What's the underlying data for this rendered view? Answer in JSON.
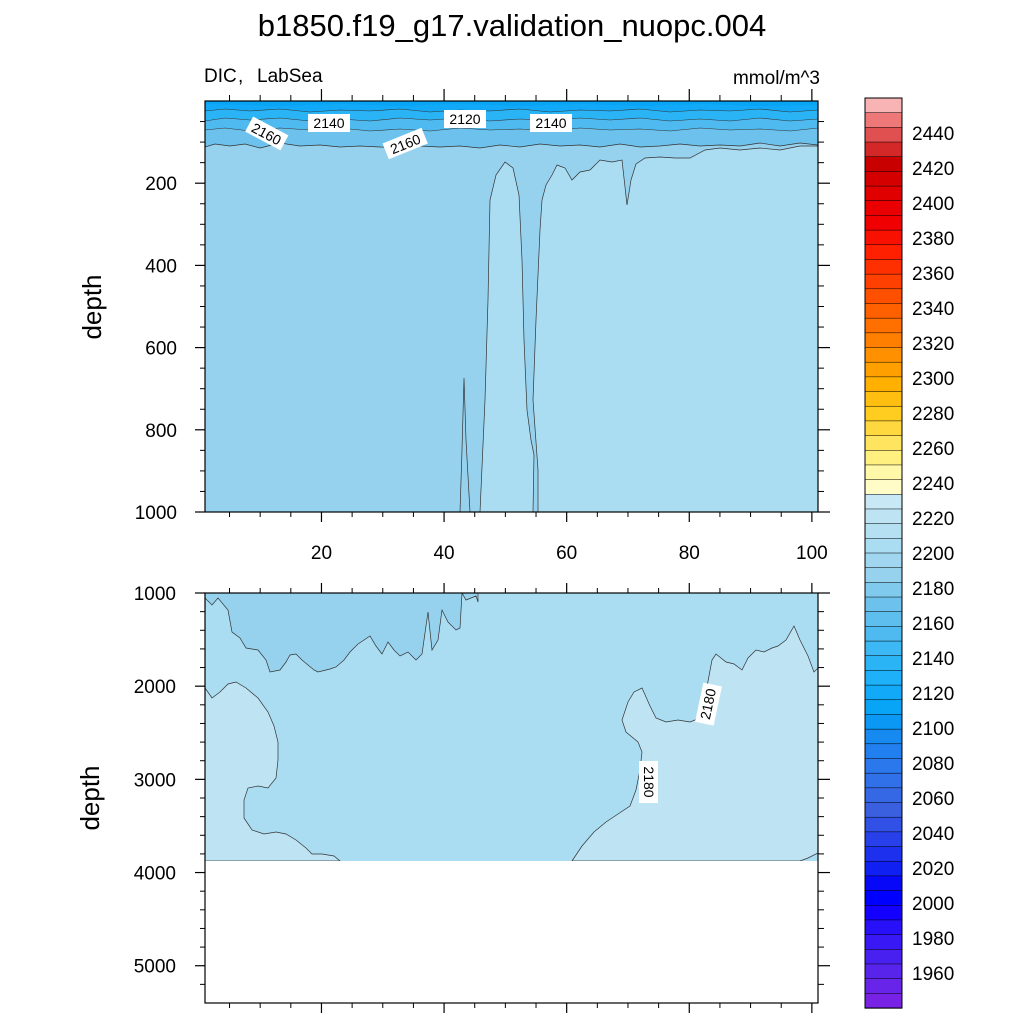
{
  "title": "b1850.f19_g17.validation_nuopc.004",
  "chart_data": {
    "type": "contour",
    "variable": "DIC",
    "region": "LabSea",
    "units": "mmol/m^3",
    "ylabel": "depth",
    "upper_panel": {
      "xlim": [
        1,
        101
      ],
      "ylim": [
        1000,
        0
      ],
      "xticks": [
        "20",
        "40",
        "60",
        "80",
        "100"
      ],
      "yticks": [
        "200",
        "400",
        "600",
        "800",
        "1000"
      ],
      "contour_labels": [
        "2160",
        "2140",
        "2120",
        "2140",
        "2160"
      ],
      "fills": [
        {
          "level": "2160-2170",
          "color": "#96d2ee"
        },
        {
          "level": "2170-2180",
          "color": "#aadcf2"
        },
        {
          "level": "2150-2160",
          "color": "#6cc2ec"
        },
        {
          "level": "2140-2150",
          "color": "#4fbaf0"
        },
        {
          "level": "2130-2140",
          "color": "#2bb4f5"
        },
        {
          "level": "2120-2130",
          "color": "#12aaf8"
        }
      ]
    },
    "lower_panel": {
      "xlim": [
        1,
        101
      ],
      "ylim": [
        5400,
        1000
      ],
      "yticks": [
        "1000",
        "2000",
        "3000",
        "4000",
        "5000"
      ],
      "ocean_bottom_depth": 3870,
      "contour_labels": [
        "2180",
        "2180"
      ],
      "fills": [
        {
          "level": "2160-2170",
          "color": "#96d2ee"
        },
        {
          "level": "2170-2180",
          "color": "#aadcf2"
        },
        {
          "level": "2180-2190",
          "color": "#bee4f4"
        }
      ]
    },
    "colorbar": {
      "labels": [
        "2440",
        "2420",
        "2400",
        "2380",
        "2360",
        "2340",
        "2320",
        "2300",
        "2280",
        "2260",
        "2240",
        "2220",
        "2200",
        "2180",
        "2160",
        "2140",
        "2120",
        "2100",
        "2080",
        "2060",
        "2040",
        "2020",
        "2000",
        "1980",
        "1960"
      ],
      "colors": [
        "#f8b4b4",
        "#ee7878",
        "#e05050",
        "#d42828",
        "#c80000",
        "#d40000",
        "#e00000",
        "#ea0000",
        "#f00000",
        "#f81000",
        "#ff2000",
        "#ff3000",
        "#ff4000",
        "#ff5000",
        "#ff6000",
        "#ff7000",
        "#ff8000",
        "#ff9000",
        "#ffa000",
        "#ffb000",
        "#ffbe10",
        "#ffcc20",
        "#ffd840",
        "#ffe460",
        "#fff080",
        "#fff8a8",
        "#fffcc8",
        "#c8e8f6",
        "#bee4f4",
        "#b4e0f2",
        "#aadcf2",
        "#a0d6f0",
        "#96d2ee",
        "#80cbed",
        "#6cc2ec",
        "#5ebeee",
        "#4fbaf0",
        "#3cb8f4",
        "#2bb4f5",
        "#1eb0f8",
        "#12aaf8",
        "#08a4f6",
        "#0a98f4",
        "#168af0",
        "#227ff0",
        "#2a78ec",
        "#3070e8",
        "#3568e4",
        "#3a60e0",
        "#3050e6",
        "#2840ea",
        "#1c30ee",
        "#1020f2",
        "#0808f8",
        "#0000ff",
        "#1400ff",
        "#2810f8",
        "#3818f4",
        "#4820f0",
        "#5824ec",
        "#6824e8",
        "#7822e6"
      ]
    }
  }
}
